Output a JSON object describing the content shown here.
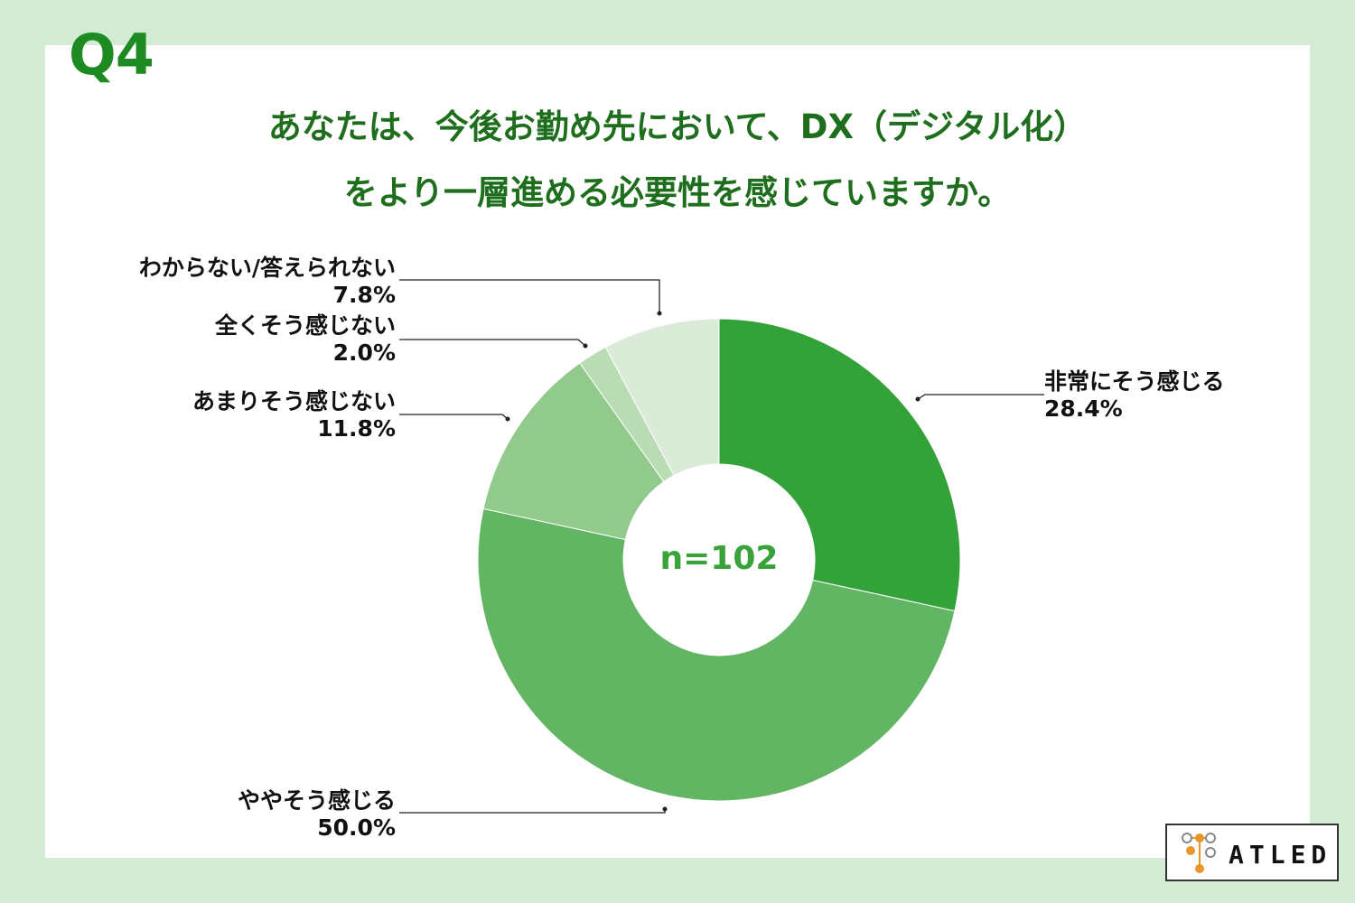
{
  "question_label": "Q4",
  "title_lines": [
    "あなたは、今後お勤め先において、DX（デジタル化）",
    "をより一層進める必要性を感じていますか。"
  ],
  "sample_label": "n=102",
  "logo_text": "ATLED",
  "colors": {
    "background": "#d3ead3",
    "title": "#1e6e1e",
    "accent": "#1e8a22"
  },
  "chart_data": {
    "type": "pie",
    "variant": "donut",
    "slices": [
      {
        "label": "非常にそう感じる",
        "value": 28.4,
        "value_label": "28.4%",
        "color": "#33a239"
      },
      {
        "label": "ややそう感じる",
        "value": 50.0,
        "value_label": "50.0%",
        "color": "#62b563"
      },
      {
        "label": "あまりそう感じない",
        "value": 11.8,
        "value_label": "11.8%",
        "color": "#91ca8c"
      },
      {
        "label": "全くそう感じない",
        "value": 2.0,
        "value_label": "2.0%",
        "color": "#b9dcb5"
      },
      {
        "label": "わからない/答えられない",
        "value": 7.8,
        "value_label": "7.8%",
        "color": "#daecd7"
      }
    ]
  }
}
